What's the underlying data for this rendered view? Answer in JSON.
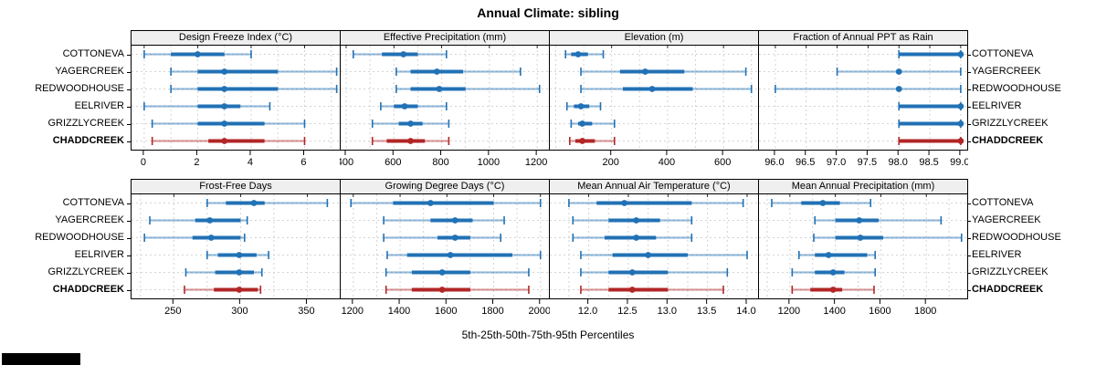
{
  "title": "Annual Climate: sibling",
  "footer_caption": "5th-25th-50th-75th-95th Percentiles",
  "sites": [
    "COTTONEVA",
    "YAGERCREEK",
    "REDWOODHOUSE",
    "EELRIVER",
    "GRIZZLYCREEK",
    "CHADDCREEK"
  ],
  "highlight_site": "CHADDCREEK",
  "percentile_levels": [
    5,
    25,
    50,
    75,
    95
  ],
  "colors": {
    "site_normal": "#2171b5",
    "site_highlight": "#b22626",
    "strip_bg": "#efefef",
    "panel_border": "#000000",
    "grid": "#d4d4d4",
    "text": "#000000"
  },
  "chart_data": [
    {
      "type": "interval",
      "title": "Design Freeze Index (°C)",
      "xlim": [
        -0.44,
        7.35
      ],
      "ticks": [
        0,
        2,
        4,
        6
      ],
      "tick_labels": [
        "0",
        "2",
        "4",
        "6"
      ],
      "grid": [
        0,
        1,
        2,
        3,
        4,
        5,
        6,
        7
      ],
      "series": [
        {
          "site": "COTTONEVA",
          "percentiles": [
            0,
            1,
            2,
            3,
            4
          ]
        },
        {
          "site": "YAGERCREEK",
          "percentiles": [
            1,
            2,
            3,
            5,
            7.2
          ]
        },
        {
          "site": "REDWOODHOUSE",
          "percentiles": [
            1,
            2,
            3,
            5,
            7.2
          ]
        },
        {
          "site": "EELRIVER",
          "percentiles": [
            0,
            2,
            3,
            3.6,
            4.7
          ]
        },
        {
          "site": "GRIZZLYCREEK",
          "percentiles": [
            0.3,
            2,
            3,
            4.5,
            6
          ]
        },
        {
          "site": "CHADDCREEK",
          "percentiles": [
            0.3,
            2.4,
            3,
            4.5,
            6
          ]
        }
      ]
    },
    {
      "type": "interval",
      "title": "Effective Precipitation (mm)",
      "xlim": [
        381,
        1253
      ],
      "ticks": [
        400,
        600,
        800,
        1000,
        1200
      ],
      "tick_labels": [
        "400",
        "600",
        "800",
        "1000",
        "1200"
      ],
      "grid": [
        400,
        500,
        600,
        700,
        800,
        900,
        1000,
        1100,
        1200
      ],
      "series": [
        {
          "site": "COTTONEVA",
          "percentiles": [
            430,
            550,
            640,
            700,
            820
          ]
        },
        {
          "site": "YAGERCREEK",
          "percentiles": [
            610,
            670,
            780,
            890,
            1130
          ]
        },
        {
          "site": "REDWOODHOUSE",
          "percentiles": [
            610,
            670,
            790,
            900,
            1210
          ]
        },
        {
          "site": "EELRIVER",
          "percentiles": [
            545,
            600,
            645,
            700,
            820
          ]
        },
        {
          "site": "GRIZZLYCREEK",
          "percentiles": [
            510,
            620,
            670,
            720,
            830
          ]
        },
        {
          "site": "CHADDCREEK",
          "percentiles": [
            510,
            570,
            670,
            730,
            830
          ]
        }
      ]
    },
    {
      "type": "interval",
      "title": "Elevation (m)",
      "xlim": [
        -18,
        727
      ],
      "ticks": [
        200,
        400,
        600
      ],
      "tick_labels": [
        "200",
        "400",
        "600"
      ],
      "grid": [
        0,
        100,
        200,
        300,
        400,
        500,
        600,
        700
      ],
      "series": [
        {
          "site": "COTTONEVA",
          "percentiles": [
            35,
            55,
            80,
            115,
            170
          ]
        },
        {
          "site": "YAGERCREEK",
          "percentiles": [
            90,
            230,
            320,
            460,
            680
          ]
        },
        {
          "site": "REDWOODHOUSE",
          "percentiles": [
            90,
            240,
            345,
            490,
            700
          ]
        },
        {
          "site": "EELRIVER",
          "percentiles": [
            40,
            65,
            90,
            120,
            160
          ]
        },
        {
          "site": "GRIZZLYCREEK",
          "percentiles": [
            55,
            80,
            95,
            130,
            210
          ]
        },
        {
          "site": "CHADDCREEK",
          "percentiles": [
            50,
            70,
            95,
            140,
            210
          ]
        }
      ]
    },
    {
      "type": "interval",
      "title": "Fraction of Annual PPT as Rain",
      "xlim": [
        95.75,
        99.12
      ],
      "ticks": [
        96,
        96.5,
        97,
        97.5,
        98,
        98.5,
        99
      ],
      "tick_labels": [
        "96.0",
        "96.5",
        "97.0",
        "97.5",
        "98.0",
        "98.5",
        "99.0"
      ],
      "grid": [
        96,
        96.5,
        97,
        97.5,
        98,
        98.5,
        99
      ],
      "series": [
        {
          "site": "COTTONEVA",
          "percentiles": [
            98,
            98,
            99,
            99,
            99
          ]
        },
        {
          "site": "YAGERCREEK",
          "percentiles": [
            97,
            98,
            98,
            98,
            99
          ]
        },
        {
          "site": "REDWOODHOUSE",
          "percentiles": [
            96,
            98,
            98,
            98,
            99
          ]
        },
        {
          "site": "EELRIVER",
          "percentiles": [
            98,
            98,
            99,
            99,
            99
          ]
        },
        {
          "site": "GRIZZLYCREEK",
          "percentiles": [
            98,
            98,
            99,
            99,
            99
          ]
        },
        {
          "site": "CHADDCREEK",
          "percentiles": [
            98,
            98,
            99,
            99,
            99
          ]
        }
      ]
    },
    {
      "type": "interval",
      "title": "Frost-Free Days",
      "xlim": [
        219,
        375
      ],
      "ticks": [
        250,
        300,
        350
      ],
      "tick_labels": [
        "250",
        "300",
        "350"
      ],
      "grid": [
        225,
        250,
        275,
        300,
        325,
        350,
        375
      ],
      "series": [
        {
          "site": "COTTONEVA",
          "percentiles": [
            275,
            289,
            310,
            318,
            365
          ]
        },
        {
          "site": "YAGERCREEK",
          "percentiles": [
            232,
            266,
            277,
            300,
            305
          ]
        },
        {
          "site": "REDWOODHOUSE",
          "percentiles": [
            228,
            264,
            278,
            300,
            303
          ]
        },
        {
          "site": "EELRIVER",
          "percentiles": [
            275,
            283,
            299,
            312,
            321
          ]
        },
        {
          "site": "GRIZZLYCREEK",
          "percentiles": [
            259,
            281,
            299,
            310,
            316
          ]
        },
        {
          "site": "CHADDCREEK",
          "percentiles": [
            258,
            280,
            299,
            313,
            315
          ]
        }
      ]
    },
    {
      "type": "interval",
      "title": "Growing Degree Days (°C)",
      "xlim": [
        1150,
        2040
      ],
      "ticks": [
        1200,
        1400,
        1600,
        1800,
        2000
      ],
      "tick_labels": [
        "1200",
        "1400",
        "1600",
        "1800",
        "2000"
      ],
      "grid": [
        1200,
        1300,
        1400,
        1500,
        1600,
        1700,
        1800,
        1900,
        2000
      ],
      "series": [
        {
          "site": "COTTONEVA",
          "percentiles": [
            1190,
            1370,
            1530,
            1800,
            2000
          ]
        },
        {
          "site": "YAGERCREEK",
          "percentiles": [
            1330,
            1530,
            1635,
            1710,
            1845
          ]
        },
        {
          "site": "REDWOODHOUSE",
          "percentiles": [
            1330,
            1560,
            1635,
            1700,
            1830
          ]
        },
        {
          "site": "EELRIVER",
          "percentiles": [
            1345,
            1430,
            1615,
            1880,
            2000
          ]
        },
        {
          "site": "GRIZZLYCREEK",
          "percentiles": [
            1340,
            1450,
            1580,
            1700,
            1950
          ]
        },
        {
          "site": "CHADDCREEK",
          "percentiles": [
            1340,
            1450,
            1580,
            1700,
            1950
          ]
        }
      ]
    },
    {
      "type": "interval",
      "title": "Mean Annual Air Temperature (°C)",
      "xlim": [
        11.52,
        14.15
      ],
      "ticks": [
        12,
        12.5,
        13,
        13.5,
        14
      ],
      "tick_labels": [
        "12.0",
        "12.5",
        "13.0",
        "13.5",
        "14.0"
      ],
      "grid": [
        11.75,
        12,
        12.25,
        12.5,
        12.75,
        13,
        13.25,
        13.5,
        13.75,
        14
      ],
      "series": [
        {
          "site": "COTTONEVA",
          "percentiles": [
            11.75,
            12.1,
            12.45,
            13.3,
            13.95
          ]
        },
        {
          "site": "YAGERCREEK",
          "percentiles": [
            11.8,
            12.25,
            12.6,
            12.9,
            13.3
          ]
        },
        {
          "site": "REDWOODHOUSE",
          "percentiles": [
            11.8,
            12.2,
            12.6,
            12.85,
            13.3
          ]
        },
        {
          "site": "EELRIVER",
          "percentiles": [
            11.9,
            12.3,
            12.75,
            13.25,
            14.0
          ]
        },
        {
          "site": "GRIZZLYCREEK",
          "percentiles": [
            11.9,
            12.25,
            12.55,
            13.0,
            13.75
          ]
        },
        {
          "site": "CHADDCREEK",
          "percentiles": [
            11.9,
            12.25,
            12.55,
            13.0,
            13.7
          ]
        }
      ]
    },
    {
      "type": "interval",
      "title": "Mean Annual Precipitation (mm)",
      "xlim": [
        1068,
        1984
      ],
      "ticks": [
        1200,
        1400,
        1600,
        1800
      ],
      "tick_labels": [
        "1200",
        "1400",
        "1600",
        "1800"
      ],
      "grid": [
        1100,
        1200,
        1300,
        1400,
        1500,
        1600,
        1700,
        1800,
        1900
      ],
      "series": [
        {
          "site": "COTTONEVA",
          "percentiles": [
            1120,
            1250,
            1345,
            1420,
            1555
          ]
        },
        {
          "site": "YAGERCREEK",
          "percentiles": [
            1310,
            1400,
            1505,
            1590,
            1865
          ]
        },
        {
          "site": "REDWOODHOUSE",
          "percentiles": [
            1305,
            1400,
            1510,
            1610,
            1955
          ]
        },
        {
          "site": "EELRIVER",
          "percentiles": [
            1240,
            1310,
            1370,
            1540,
            1575
          ]
        },
        {
          "site": "GRIZZLYCREEK",
          "percentiles": [
            1210,
            1310,
            1390,
            1440,
            1575
          ]
        },
        {
          "site": "CHADDCREEK",
          "percentiles": [
            1210,
            1290,
            1390,
            1430,
            1570
          ]
        }
      ]
    }
  ]
}
